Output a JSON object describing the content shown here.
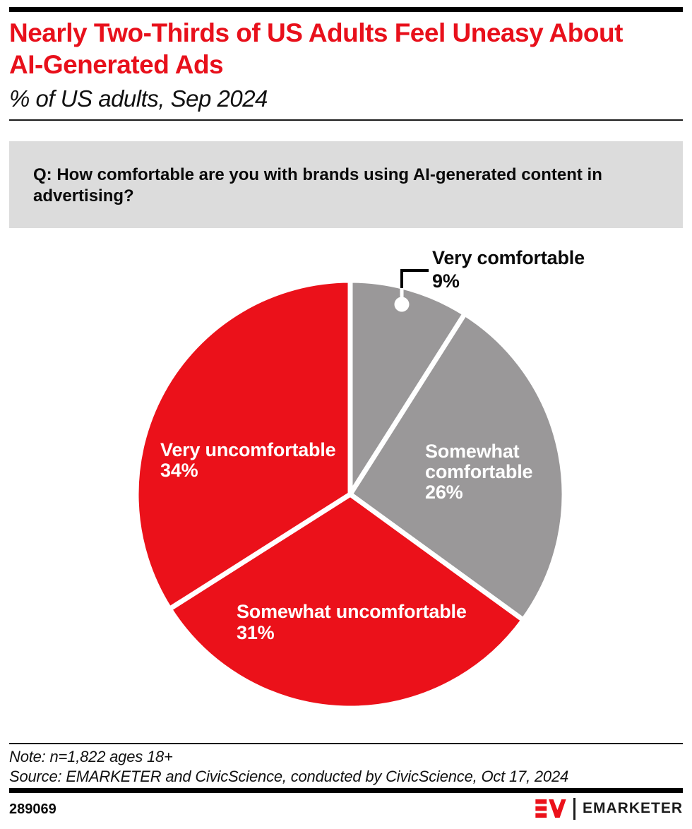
{
  "header": {
    "title_lines": [
      "Nearly Two-Thirds of US Adults Feel Uneasy About",
      "AI-Generated Ads"
    ],
    "subtitle": "% of US adults, Sep 2024"
  },
  "question": {
    "lines": [
      "Q: How comfortable are you with brands using AI-generated content in",
      "advertising?"
    ]
  },
  "chart_data": {
    "type": "pie",
    "title": "Nearly Two-Thirds of US Adults Feel Uneasy About AI-Generated Ads",
    "subtitle": "% of US adults, Sep 2024",
    "question": "Q: How comfortable are you with brands using AI-generated content in advertising?",
    "unit": "%",
    "start_angle_deg": 0,
    "direction": "clockwise",
    "slices": [
      {
        "label": "Very comfortable",
        "value": 9,
        "display": "9%",
        "color": "#9A9899",
        "label_placement": "outside-callout"
      },
      {
        "label": "Somewhat comfortable",
        "value": 26,
        "display": "26%",
        "color": "#9A9899",
        "label_placement": "inside"
      },
      {
        "label": "Somewhat uncomfortable",
        "value": 31,
        "display": "31%",
        "color": "#EB111A",
        "label_placement": "inside"
      },
      {
        "label": "Very uncomfortable",
        "value": 34,
        "display": "34%",
        "color": "#EB111A",
        "label_placement": "inside"
      }
    ],
    "colors": {
      "red": "#EB111A",
      "gray": "#9A9899",
      "question_box": "#DCDCDC",
      "title_red": "#E8101B"
    }
  },
  "footer": {
    "note": "Note: n=1,822 ages 18+",
    "source": "Source: EMARKETER and CivicScience, conducted by CivicScience, Oct 17, 2024",
    "chart_id": "289069",
    "brand": "EMARKETER"
  }
}
